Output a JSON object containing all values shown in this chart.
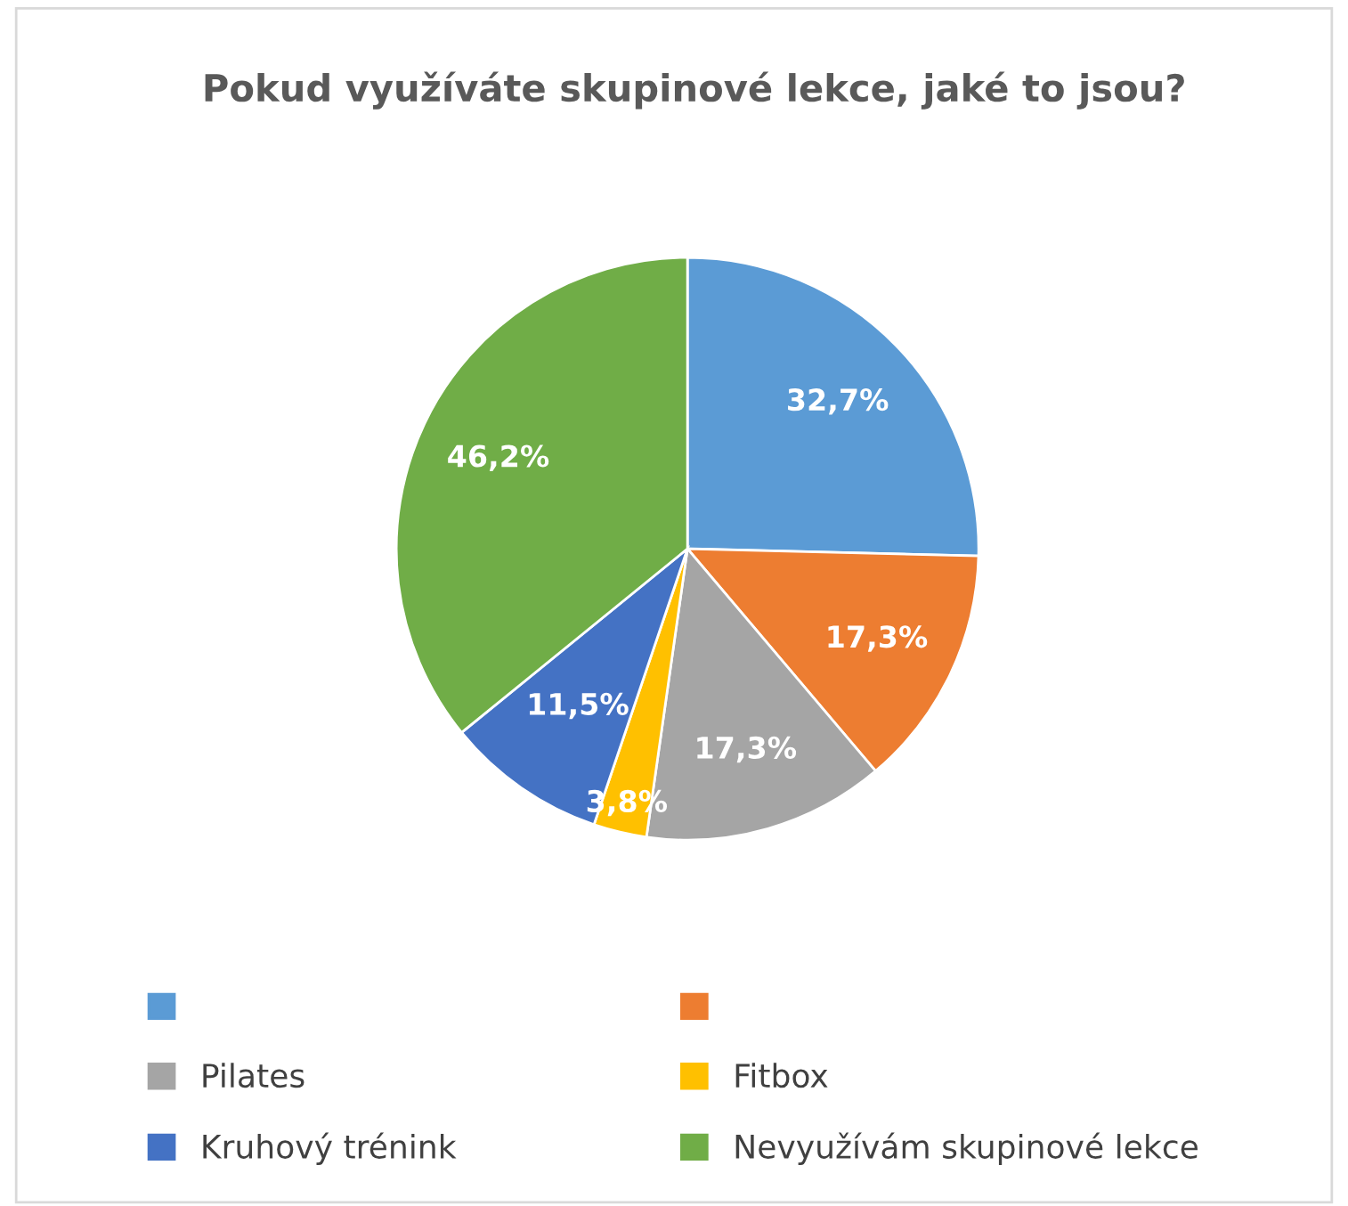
{
  "chart_data": {
    "type": "pie",
    "title": "Pokud využíváte skupinové lekce, jaké to jsou?",
    "categories": [
      null,
      null,
      "Pilates",
      "Fitbox",
      "Kruhový trénink",
      "Nevyužívám skupinové lekce"
    ],
    "values": [
      32.7,
      17.3,
      17.3,
      3.8,
      11.5,
      46.2
    ],
    "value_labels": [
      "32,7%",
      "17,3%",
      "17,3%",
      "3,8%",
      "11,5%",
      "46,2%"
    ],
    "colors": [
      "#5b9bd5",
      "#ed7d31",
      "#a5a5a5",
      "#ffc000",
      "#4472c4",
      "#70ad47"
    ],
    "legend": "bottom"
  }
}
